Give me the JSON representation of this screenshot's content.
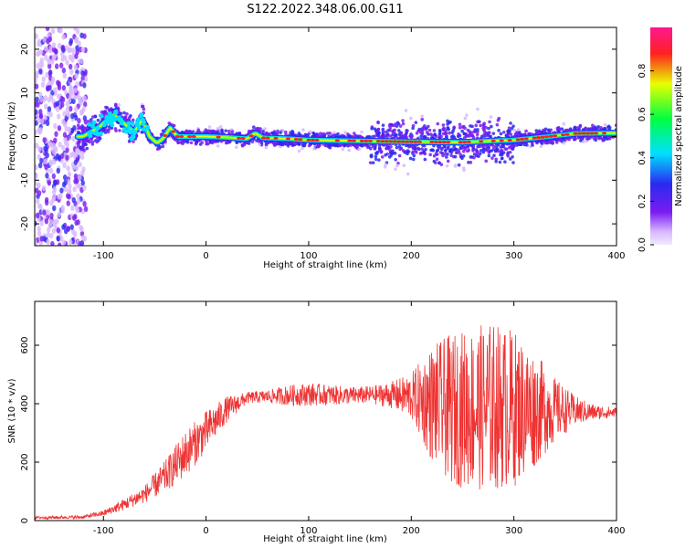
{
  "title": "S122.2022.348.06.00.G11",
  "chart_data": [
    {
      "type": "heatmap",
      "xlabel": "Height of straight line (km)",
      "ylabel": "Frequency (Hz)",
      "xlim": [
        -167,
        400
      ],
      "ylim": [
        -25,
        25
      ],
      "xticks": [
        -100,
        0,
        100,
        200,
        300,
        400
      ],
      "yticks": [
        -20,
        -10,
        0,
        10,
        20
      ],
      "colorbar": {
        "label": "Normalized spectral amplitude",
        "ticks": [
          0.0,
          0.2,
          0.4,
          0.6,
          0.8
        ],
        "range": [
          0,
          1
        ],
        "colors": [
          "#f3eaff",
          "#d8b8ff",
          "#7a1cf0",
          "#2a2af0",
          "#00e0ff",
          "#00ff40",
          "#e8ff00",
          "#ff2020",
          "#ff1890"
        ]
      },
      "ridge": {
        "x": [
          -120,
          -105,
          -90,
          -80,
          -70,
          -62,
          -55,
          -48,
          -42,
          -35,
          -28,
          -20,
          0,
          20,
          40,
          48,
          55,
          80,
          100,
          150,
          200,
          250,
          300,
          330,
          360,
          400
        ],
        "y": [
          0,
          2,
          5,
          3,
          1,
          4,
          0,
          -1.5,
          -0.5,
          2,
          0,
          0,
          0,
          -0.2,
          -0.5,
          0.8,
          -0.3,
          -0.5,
          -0.8,
          -1.0,
          -1.2,
          -1.3,
          -0.8,
          -0.1,
          0.7,
          0.8
        ]
      }
    },
    {
      "type": "line",
      "xlabel": "Height of straight line (km)",
      "ylabel": "SNR (10 * v/v)",
      "xlim": [
        -167,
        400
      ],
      "ylim": [
        0,
        750
      ],
      "xticks": [
        -100,
        0,
        100,
        200,
        300,
        400
      ],
      "yticks": [
        0,
        200,
        400,
        600
      ],
      "color": "#ee3333",
      "envelope": {
        "x": [
          -167,
          -120,
          -100,
          -80,
          -60,
          -40,
          -20,
          0,
          20,
          40,
          60,
          80,
          100,
          120,
          140,
          160,
          180,
          200,
          220,
          240,
          260,
          280,
          300,
          320,
          340,
          360,
          380,
          400
        ],
        "mean": [
          10,
          12,
          25,
          55,
          90,
          150,
          230,
          305,
          380,
          420,
          425,
          428,
          432,
          430,
          428,
          430,
          430,
          425,
          400,
          380,
          385,
          390,
          385,
          380,
          380,
          375,
          370,
          370
        ],
        "amplitude": [
          5,
          6,
          10,
          20,
          30,
          55,
          80,
          70,
          45,
          20,
          22,
          35,
          40,
          35,
          30,
          30,
          45,
          80,
          200,
          260,
          280,
          290,
          270,
          200,
          110,
          50,
          25,
          18
        ]
      }
    }
  ]
}
